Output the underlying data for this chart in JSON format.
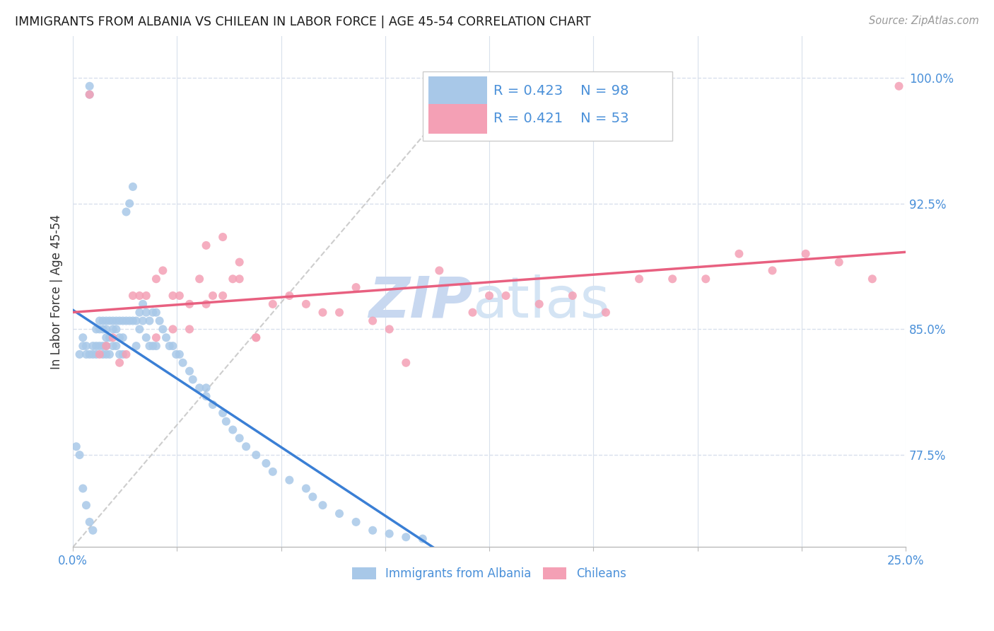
{
  "title": "IMMIGRANTS FROM ALBANIA VS CHILEAN IN LABOR FORCE | AGE 45-54 CORRELATION CHART",
  "source": "Source: ZipAtlas.com",
  "ylabel": "In Labor Force | Age 45-54",
  "xlim": [
    0.0,
    0.25
  ],
  "ylim": [
    0.72,
    1.025
  ],
  "yticks": [
    0.775,
    0.85,
    0.925,
    1.0
  ],
  "ytick_labels": [
    "77.5%",
    "85.0%",
    "92.5%",
    "100.0%"
  ],
  "albania_R": 0.423,
  "albania_N": 98,
  "chilean_R": 0.421,
  "chilean_N": 53,
  "albania_color": "#a8c8e8",
  "chilean_color": "#f4a0b5",
  "albania_line_color": "#3a7fd5",
  "chilean_line_color": "#e86080",
  "diagonal_color": "#c8c8c8",
  "watermark_color_zip": "#c8d8f0",
  "watermark_color_atlas": "#d8e8f8",
  "tick_color": "#4a90d9",
  "grid_color": "#d8e0ec"
}
